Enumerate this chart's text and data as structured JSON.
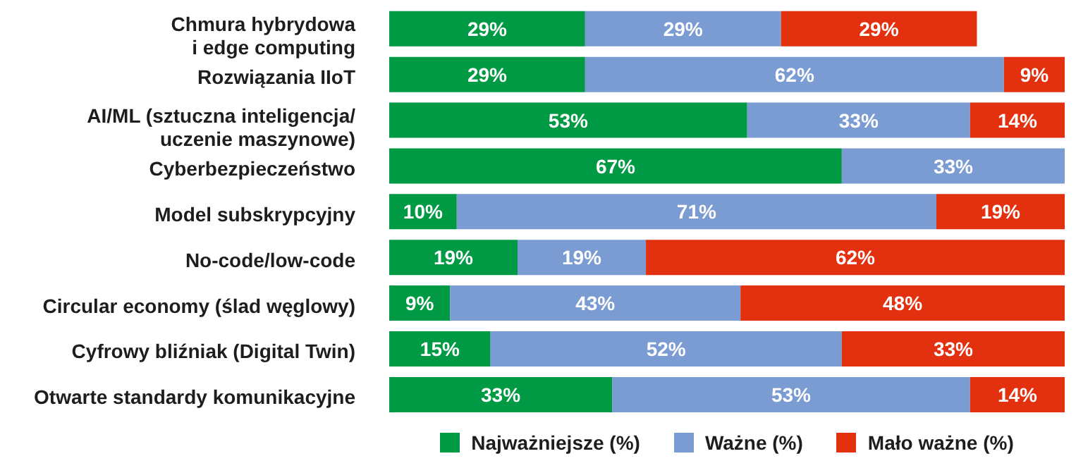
{
  "chart_data": {
    "type": "bar",
    "orientation": "horizontal",
    "stacked": true,
    "categories": [
      "Chmura hybrydowa\ni edge computing",
      "Rozwiązania IIoT",
      "AI/ML (sztuczna inteligencja/\nuczenie maszynowe)",
      "Cyberbezpieczeństwo",
      "Model subskrypcyjny",
      "No-code/low-code",
      "Circular economy (ślad węglowy)",
      "Cyfrowy bliźniak (Digital Twin)",
      "Otwarte standardy komunikacyjne"
    ],
    "series": [
      {
        "name": "Najważniejsze (%)",
        "color": "#009a44",
        "values": [
          29,
          29,
          53,
          67,
          10,
          19,
          9,
          15,
          33
        ],
        "value_labels": [
          "29%",
          "29%",
          "53%",
          "67%",
          "10%",
          "19%",
          "9%",
          "15%",
          "33%"
        ]
      },
      {
        "name": "Ważne (%)",
        "color": "#7b9bd3",
        "values": [
          29,
          62,
          33,
          33,
          71,
          19,
          43,
          52,
          53
        ],
        "value_labels": [
          "29%",
          "62%",
          "33%",
          "33%",
          "71%",
          "19%",
          "43%",
          "52%",
          "53%"
        ]
      },
      {
        "name": "Mało ważne (%)",
        "color": "#e3310f",
        "values": [
          29,
          9,
          14,
          null,
          19,
          62,
          48,
          33,
          14
        ],
        "value_labels": [
          "29%",
          "9%",
          "14%",
          null,
          "19%",
          "62%",
          "48%",
          "33%",
          "14%"
        ]
      }
    ],
    "xlim": [
      0,
      100
    ],
    "tick_labels": "y",
    "legend": "bottom"
  }
}
